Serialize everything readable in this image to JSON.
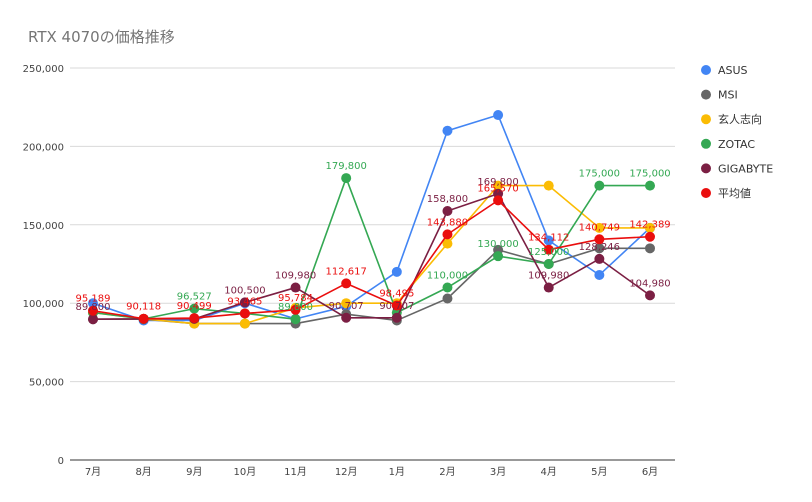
{
  "chart_data": {
    "type": "line",
    "title": "RTX 4070の価格推移",
    "xlabel": "",
    "ylabel": "",
    "ylim": [
      0,
      250000
    ],
    "yticks": [
      0,
      50000,
      100000,
      150000,
      200000,
      250000
    ],
    "ytick_labels": [
      "0",
      "50,000",
      "100,000",
      "150,000",
      "200,000",
      "250,000"
    ],
    "grid": true,
    "legend_position": "right",
    "categories": [
      "7月",
      "8月",
      "9月",
      "10月",
      "11月",
      "12月",
      "1月",
      "2月",
      "3月",
      "4月",
      "5月",
      "6月"
    ],
    "series": [
      {
        "name": "ASUS",
        "color": "#4285f4",
        "values": [
          100000,
          89000,
          89000,
          100000,
          90000,
          98000,
          120000,
          210000,
          220000,
          140000,
          118000,
          148000
        ],
        "labels": []
      },
      {
        "name": "MSI",
        "color": "#666666",
        "values": [
          89800,
          89800,
          87000,
          87000,
          87000,
          93000,
          89000,
          103000,
          134000,
          125000,
          135000,
          135000
        ],
        "labels": []
      },
      {
        "name": "玄人志向",
        "color": "#fbbc04",
        "values": [
          94000,
          90000,
          87000,
          87000,
          97000,
          100000,
          100000,
          138000,
          175000,
          175000,
          148000,
          148000
        ],
        "labels": []
      },
      {
        "name": "ZOTAC",
        "color": "#34a853",
        "values": [
          94000,
          90000,
          96527,
          93465,
          89800,
          179800,
          94000,
          110000,
          130000,
          125000,
          175000,
          175000
        ],
        "labels": [
          "",
          "",
          "96,527",
          "",
          "89,800",
          "179,800",
          "",
          "110,000",
          "130,000",
          "125,000",
          "175,000",
          "175,000"
        ]
      },
      {
        "name": "GIGABYTE",
        "color": "#7b1f43",
        "values": [
          89800,
          90000,
          90000,
          100500,
          109980,
          90707,
          90707,
          158800,
          169800,
          109980,
          128246,
          104980
        ],
        "labels": [
          "89,800",
          "",
          "",
          "100,500",
          "109,980",
          "90,707",
          "90,707",
          "158,800",
          "169,800",
          "109,980",
          "128,246",
          "104,980"
        ]
      },
      {
        "name": "平均値",
        "color": "#ea0e0e",
        "values": [
          95189,
          90118,
          90499,
          93465,
          95784,
          112617,
          98495,
          143880,
          165570,
          134112,
          140749,
          142389
        ],
        "labels": [
          "95,189",
          "90,118",
          "90,499",
          "93,465",
          "95,784",
          "112,617",
          "98,495",
          "143,880",
          "165,570",
          "134,112",
          "140,749",
          "142,389"
        ]
      }
    ]
  }
}
